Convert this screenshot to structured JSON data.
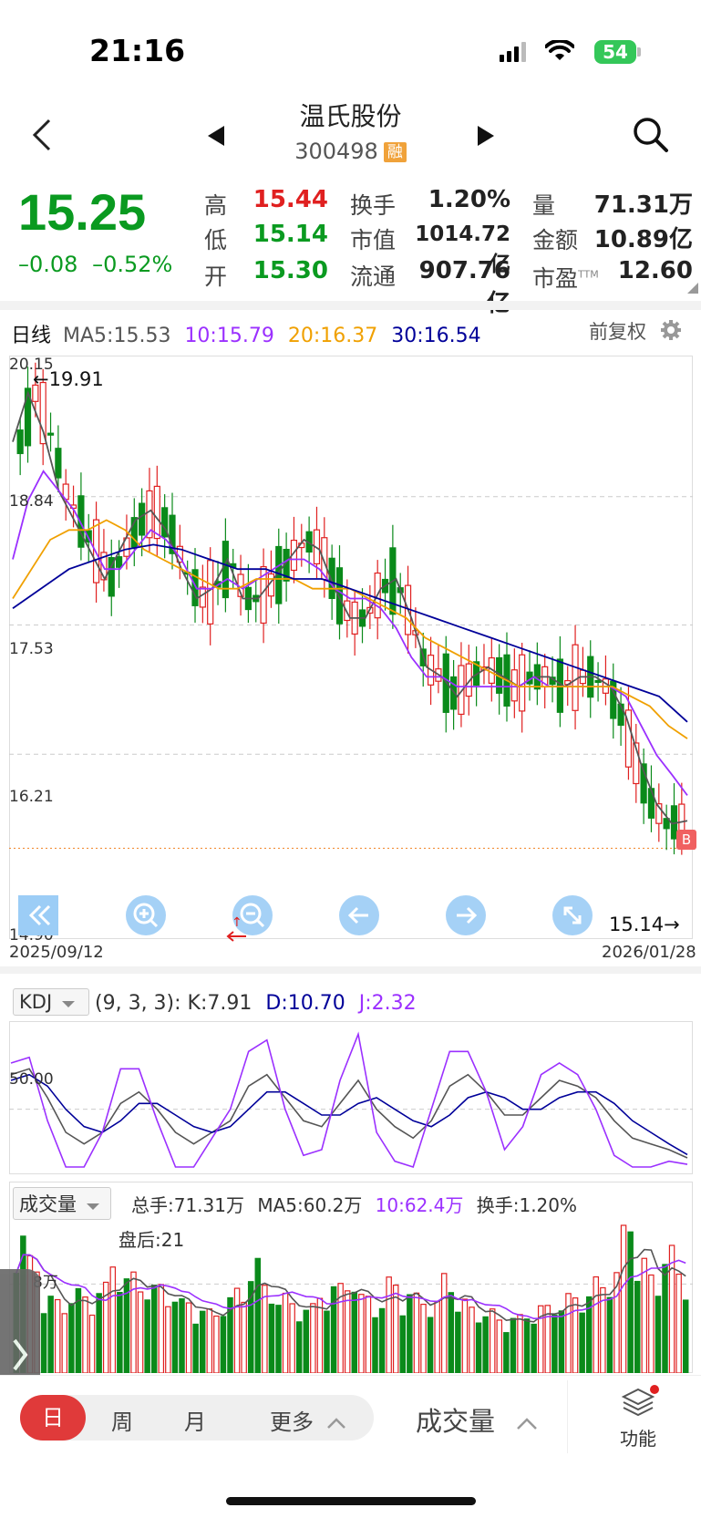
{
  "status_bar": {
    "time": "21:16",
    "battery": "54"
  },
  "header": {
    "title": "温氏股份",
    "code": "300498",
    "badge": "融"
  },
  "quote": {
    "price": "15.25",
    "change": "–0.08",
    "change_pct": "–0.52%",
    "high_label": "高",
    "high": "15.44",
    "low_label": "低",
    "low": "15.14",
    "open_label": "开",
    "open": "15.30",
    "turnover_label": "换手",
    "turnover": "1.20%",
    "mktcap_label": "市值",
    "mktcap": "1014.72亿",
    "float_label": "流通",
    "float": "907.76亿",
    "volume_label": "量",
    "volume": "71.31万",
    "amount_label": "金额",
    "amount": "10.89亿",
    "pe_label": "市盈",
    "pe_sup": "TTM",
    "pe": "12.60"
  },
  "kline": {
    "period_label": "日线",
    "ma5": "MA5:15.53",
    "ma10": "10:15.79",
    "ma20": "20:16.37",
    "ma30": "30:16.54",
    "adjust_label": "前复权",
    "y_ticks": [
      "20.15",
      "18.84",
      "17.53",
      "16.21",
      "14.90"
    ],
    "max_marker": "←19.91",
    "min_marker": "15.14→",
    "marker_badge": "B",
    "date_start": "2025/09/12",
    "date_end": "2026/01/28",
    "colors": {
      "up": "#e02020",
      "down": "#0a8a1a",
      "ma5": "#555555",
      "ma10": "#9b30ff",
      "ma20": "#f0a000",
      "ma30": "#000099"
    }
  },
  "chart_data": [
    {
      "type": "candlestick",
      "title": "日线",
      "ylim": [
        14.9,
        20.15
      ],
      "x_range": [
        "2025/09/12",
        "2026/01/28"
      ],
      "series": [
        {
          "name": "MA5",
          "values": [
            19.4,
            19.9,
            19.5,
            18.9,
            18.6,
            18.3,
            18.0,
            18.3,
            18.6,
            18.7,
            18.5,
            18.1,
            17.8,
            17.9,
            18.2,
            17.8,
            17.8,
            18.0,
            18.2,
            18.4,
            18.3,
            17.9,
            17.6,
            17.6,
            17.9,
            18.0,
            17.6,
            17.1,
            17.0,
            16.8,
            17.0,
            17.1,
            17.0,
            16.9,
            17.0,
            17.0,
            16.9,
            17.0,
            17.0,
            16.9,
            16.6,
            16.1,
            15.7,
            15.5,
            15.53
          ]
        },
        {
          "name": "MA10",
          "values": [
            18.2,
            18.8,
            19.1,
            18.9,
            18.7,
            18.4,
            18.1,
            18.1,
            18.3,
            18.5,
            18.4,
            18.2,
            17.9,
            17.9,
            18.0,
            17.9,
            18.0,
            18.1,
            18.2,
            18.2,
            18.1,
            17.9,
            17.8,
            17.8,
            17.7,
            17.5,
            17.2,
            17.0,
            17.0,
            16.9,
            16.9,
            16.9,
            16.9,
            16.9,
            17.0,
            16.9,
            16.9,
            16.9,
            16.9,
            16.9,
            16.8,
            16.5,
            16.2,
            16.0,
            15.79
          ]
        },
        {
          "name": "MA20",
          "values": [
            17.8,
            18.1,
            18.4,
            18.5,
            18.5,
            18.6,
            18.5,
            18.3,
            18.2,
            18.1,
            18.0,
            17.9,
            17.9,
            18.0,
            18.0,
            18.0,
            17.9,
            17.9,
            17.9,
            17.8,
            17.7,
            17.6,
            17.4,
            17.3,
            17.2,
            17.1,
            17.0,
            16.9,
            16.9,
            16.9,
            16.9,
            16.9,
            16.9,
            16.8,
            16.7,
            16.5,
            16.37
          ]
        },
        {
          "name": "MA30",
          "values": [
            17.7,
            17.9,
            18.1,
            18.2,
            18.3,
            18.35,
            18.3,
            18.2,
            18.1,
            18.1,
            18.0,
            18.0,
            17.9,
            17.8,
            17.7,
            17.6,
            17.5,
            17.4,
            17.3,
            17.2,
            17.1,
            17.0,
            16.9,
            16.8,
            16.54
          ]
        }
      ]
    },
    {
      "type": "line",
      "title": "KDJ",
      "params": "(9, 3, 3):",
      "y_tick": "50.00",
      "series": [
        {
          "name": "K",
          "label": "K:7.91",
          "values": [
            80,
            85,
            60,
            30,
            20,
            30,
            55,
            65,
            50,
            30,
            20,
            30,
            40,
            70,
            80,
            60,
            40,
            35,
            55,
            75,
            50,
            35,
            25,
            40,
            70,
            80,
            65,
            45,
            45,
            60,
            75,
            70,
            60,
            40,
            25,
            20,
            15,
            7.91
          ]
        },
        {
          "name": "D",
          "label": "D:10.70",
          "values": [
            75,
            80,
            70,
            50,
            35,
            30,
            40,
            55,
            55,
            45,
            35,
            30,
            35,
            50,
            65,
            65,
            55,
            45,
            45,
            55,
            60,
            50,
            40,
            35,
            45,
            60,
            65,
            60,
            50,
            50,
            60,
            65,
            65,
            55,
            40,
            30,
            20,
            10.7
          ]
        },
        {
          "name": "J",
          "label": "J:2.32",
          "values": [
            90,
            95,
            40,
            0,
            0,
            30,
            85,
            85,
            40,
            0,
            0,
            25,
            50,
            100,
            110,
            50,
            10,
            15,
            75,
            115,
            30,
            5,
            0,
            50,
            100,
            100,
            65,
            15,
            35,
            80,
            90,
            80,
            50,
            10,
            0,
            0,
            5,
            2.32
          ]
        }
      ]
    },
    {
      "type": "bar",
      "title": "成交量",
      "summary": [
        "总手:71.31万",
        "MA5:60.2万",
        "10:62.4万",
        "换手:1.20%"
      ],
      "after_hours": "盘后:21",
      "y_tick": "8万",
      "values": [
        140,
        110,
        75,
        70,
        80,
        75,
        85,
        110,
        95,
        90,
        85,
        80,
        70,
        65,
        60,
        75,
        80,
        110,
        85,
        75,
        70,
        65,
        80,
        85,
        95,
        75,
        70,
        90,
        80,
        75,
        70,
        95,
        70,
        65,
        60,
        55,
        55,
        60,
        65,
        70,
        75,
        80,
        90,
        100,
        160,
        110,
        95,
        120,
        100
      ]
    }
  ],
  "kdj": {
    "dropdown": "KDJ",
    "params": "(9, 3, 3):",
    "k": "K:7.91",
    "d": "D:10.70",
    "j": "J:2.32",
    "y_tick": "50.00"
  },
  "volume": {
    "dropdown": "成交量",
    "total": "总手:71.31万",
    "ma5": "MA5:60.2万",
    "ma10": "10:62.4万",
    "turnover": "换手:1.20%",
    "after_hours": "盘后:21",
    "y_tick": "8万"
  },
  "bottom": {
    "tabs": [
      "日",
      "周",
      "月",
      "更多"
    ],
    "indicator": "成交量",
    "function": "功能"
  }
}
